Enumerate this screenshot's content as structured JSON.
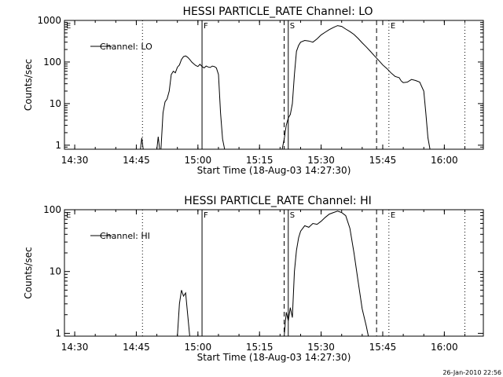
{
  "footer": {
    "timestamp": "26-Jan-2010 22:56"
  },
  "chart_data": [
    {
      "type": "line",
      "title": "HESSI PARTICLE_RATE Channel: LO",
      "xlabel": "Start Time (18-Aug-03 14:27:30)",
      "ylabel": "Counts/sec",
      "yscale": "log",
      "xlim": [
        "14:27:30",
        "16:09:30"
      ],
      "ylim": [
        0.8,
        1000
      ],
      "x_ticks": [
        "14:30",
        "14:45",
        "15:00",
        "15:15",
        "15:30",
        "15:45",
        "16:00"
      ],
      "y_ticks": [
        "1",
        "10",
        "100",
        "1000"
      ],
      "legend": {
        "position": "top-left",
        "entries": [
          "Channel: LO"
        ]
      },
      "markers": [
        {
          "label": "E",
          "time": "14:27:30",
          "style": "dotted"
        },
        {
          "label": "",
          "time": "14:46:30",
          "style": "dotted"
        },
        {
          "label": "F",
          "time": "15:01:00",
          "style": "solid"
        },
        {
          "label": "S",
          "time": "15:22:00",
          "style": "solid"
        },
        {
          "label": "",
          "time": "15:21:00",
          "style": "dashed"
        },
        {
          "label": "",
          "time": "15:43:30",
          "style": "dashed"
        },
        {
          "label": "E",
          "time": "15:46:30",
          "style": "dotted"
        },
        {
          "label": "",
          "time": "16:05:00",
          "style": "dotted"
        }
      ],
      "series": [
        {
          "name": "Channel: LO",
          "segments": [
            [
              [
                "14:46:00",
                0.8
              ],
              [
                "14:46:20",
                1.5
              ],
              [
                "14:46:40",
                0.8
              ]
            ],
            [
              [
                "14:50:00",
                0.8
              ],
              [
                "14:50:20",
                1.6
              ],
              [
                "14:50:40",
                0.8
              ]
            ],
            [
              [
                "14:51:00",
                0.8
              ],
              [
                "14:51:30",
                6
              ],
              [
                "14:52:00",
                11
              ],
              [
                "14:52:30",
                13
              ],
              [
                "14:53:00",
                20
              ],
              [
                "14:53:30",
                50
              ],
              [
                "14:54:00",
                60
              ],
              [
                "14:54:30",
                55
              ],
              [
                "14:55:00",
                75
              ],
              [
                "14:55:30",
                85
              ],
              [
                "14:56:00",
                115
              ],
              [
                "14:56:30",
                135
              ],
              [
                "14:57:00",
                140
              ],
              [
                "14:57:30",
                130
              ],
              [
                "14:58:00",
                115
              ],
              [
                "14:58:30",
                100
              ],
              [
                "14:59:00",
                90
              ],
              [
                "14:59:30",
                82
              ],
              [
                "15:00:00",
                78
              ],
              [
                "15:00:30",
                88
              ],
              [
                "15:01:00",
                78
              ],
              [
                "15:01:30",
                72
              ],
              [
                "15:02:00",
                80
              ],
              [
                "15:02:30",
                76
              ],
              [
                "15:03:00",
                74
              ],
              [
                "15:03:30",
                80
              ],
              [
                "15:04:00",
                78
              ],
              [
                "15:04:30",
                72
              ],
              [
                "15:05:00",
                50
              ],
              [
                "15:05:30",
                6
              ],
              [
                "15:06:00",
                1.4
              ],
              [
                "15:06:30",
                0.8
              ]
            ],
            [
              [
                "15:20:30",
                0.8
              ],
              [
                "15:21:00",
                1.4
              ],
              [
                "15:21:30",
                3
              ],
              [
                "15:22:00",
                4.5
              ],
              [
                "15:22:30",
                5.5
              ],
              [
                "15:23:00",
                10
              ],
              [
                "15:23:30",
                50
              ],
              [
                "15:24:00",
                180
              ],
              [
                "15:24:30",
                250
              ],
              [
                "15:25:00",
                300
              ],
              [
                "15:26:00",
                330
              ],
              [
                "15:27:00",
                320
              ],
              [
                "15:28:00",
                300
              ],
              [
                "15:29:00",
                360
              ],
              [
                "15:30:00",
                450
              ],
              [
                "15:31:00",
                520
              ],
              [
                "15:32:00",
                600
              ],
              [
                "15:33:00",
                680
              ],
              [
                "15:34:00",
                750
              ],
              [
                "15:35:00",
                720
              ],
              [
                "15:36:00",
                620
              ],
              [
                "15:37:00",
                540
              ],
              [
                "15:38:00",
                460
              ],
              [
                "15:39:00",
                370
              ],
              [
                "15:40:00",
                290
              ],
              [
                "15:41:00",
                230
              ],
              [
                "15:42:00",
                180
              ],
              [
                "15:43:00",
                140
              ],
              [
                "15:44:00",
                110
              ],
              [
                "15:45:00",
                85
              ],
              [
                "15:46:00",
                70
              ],
              [
                "15:47:00",
                55
              ],
              [
                "15:48:00",
                45
              ],
              [
                "15:49:00",
                42
              ],
              [
                "15:49:30",
                35
              ],
              [
                "15:50:00",
                32
              ],
              [
                "15:51:00",
                33
              ],
              [
                "15:52:00",
                38
              ],
              [
                "15:53:00",
                36
              ],
              [
                "15:54:00",
                33
              ],
              [
                "15:55:00",
                20
              ],
              [
                "15:55:30",
                6
              ],
              [
                "15:56:00",
                1.5
              ],
              [
                "15:56:30",
                0.8
              ]
            ]
          ]
        }
      ]
    },
    {
      "type": "line",
      "title": "HESSI PARTICLE_RATE Channel: HI",
      "xlabel": "Start Time (18-Aug-03 14:27:30)",
      "ylabel": "Counts/sec",
      "yscale": "log",
      "xlim": [
        "14:27:30",
        "16:09:30"
      ],
      "ylim": [
        0.9,
        100
      ],
      "x_ticks": [
        "14:30",
        "14:45",
        "15:00",
        "15:15",
        "15:30",
        "15:45",
        "16:00"
      ],
      "y_ticks": [
        "1",
        "10",
        "100"
      ],
      "legend": {
        "position": "top-left",
        "entries": [
          "Channel: HI"
        ]
      },
      "markers": [
        {
          "label": "E",
          "time": "14:27:30",
          "style": "dotted"
        },
        {
          "label": "",
          "time": "14:46:30",
          "style": "dotted"
        },
        {
          "label": "F",
          "time": "15:01:00",
          "style": "solid"
        },
        {
          "label": "S",
          "time": "15:22:00",
          "style": "solid"
        },
        {
          "label": "",
          "time": "15:21:00",
          "style": "dashed"
        },
        {
          "label": "",
          "time": "15:43:30",
          "style": "dashed"
        },
        {
          "label": "E",
          "time": "15:46:30",
          "style": "dotted"
        },
        {
          "label": "",
          "time": "16:05:00",
          "style": "dotted"
        }
      ],
      "series": [
        {
          "name": "Channel: HI",
          "segments": [
            [
              [
                "14:55:00",
                0.9
              ],
              [
                "14:55:30",
                3
              ],
              [
                "14:56:00",
                5
              ],
              [
                "14:56:30",
                4
              ],
              [
                "14:57:00",
                4.5
              ],
              [
                "14:57:30",
                2
              ],
              [
                "14:58:00",
                0.9
              ]
            ],
            [
              [
                "15:21:00",
                0.9
              ],
              [
                "15:21:30",
                2.2
              ],
              [
                "15:22:00",
                1.6
              ],
              [
                "15:22:30",
                2.6
              ],
              [
                "15:23:00",
                1.8
              ],
              [
                "15:23:30",
                10
              ],
              [
                "15:24:00",
                22
              ],
              [
                "15:24:30",
                35
              ],
              [
                "15:25:00",
                45
              ],
              [
                "15:26:00",
                55
              ],
              [
                "15:27:00",
                52
              ],
              [
                "15:28:00",
                60
              ],
              [
                "15:29:00",
                58
              ],
              [
                "15:30:00",
                65
              ],
              [
                "15:31:00",
                75
              ],
              [
                "15:32:00",
                85
              ],
              [
                "15:33:00",
                90
              ],
              [
                "15:34:00",
                95
              ],
              [
                "15:35:00",
                90
              ],
              [
                "15:36:00",
                80
              ],
              [
                "15:37:00",
                50
              ],
              [
                "15:38:00",
                20
              ],
              [
                "15:39:00",
                7
              ],
              [
                "15:40:00",
                2.5
              ],
              [
                "15:41:00",
                1.3
              ],
              [
                "15:41:30",
                0.9
              ]
            ]
          ]
        }
      ]
    }
  ]
}
